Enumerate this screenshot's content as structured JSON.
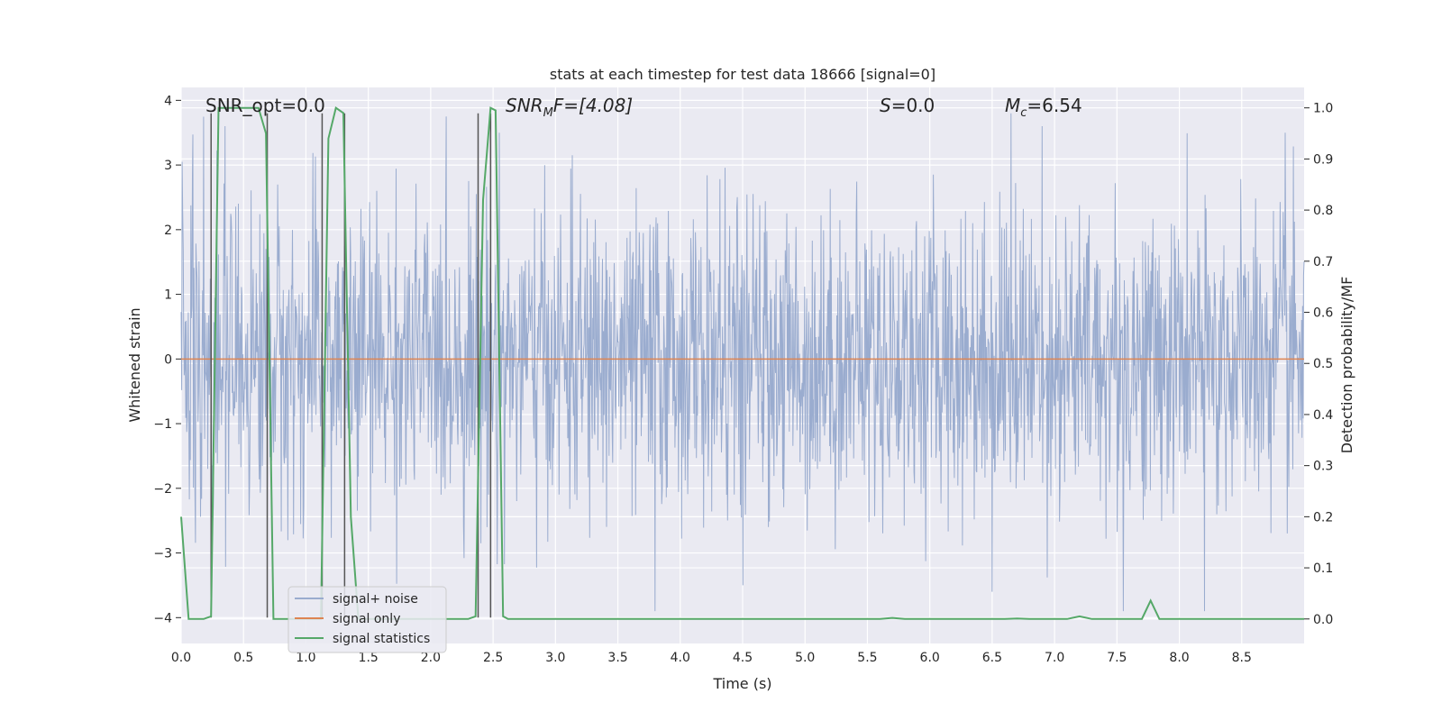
{
  "chart_data": {
    "type": "line",
    "title": "stats at each timestep for test data 18666 [signal=0]",
    "xlabel": "Time (s)",
    "ylabel_left": "Whitened strain",
    "ylabel_right": "Detection probability/MF",
    "xlim": [
      0,
      9.0
    ],
    "ylim_left": [
      -4.4,
      4.2
    ],
    "ylim_right": [
      -0.048,
      1.04
    ],
    "x_ticks": [
      0.0,
      0.5,
      1.0,
      1.5,
      2.0,
      2.5,
      3.0,
      3.5,
      4.0,
      4.5,
      5.0,
      5.5,
      6.0,
      6.5,
      7.0,
      7.5,
      8.0,
      8.5
    ],
    "x_tick_labels": [
      "0.0",
      "0.5",
      "1.0",
      "1.5",
      "2.0",
      "2.5",
      "3.0",
      "3.5",
      "4.0",
      "4.5",
      "5.0",
      "5.5",
      "6.0",
      "6.5",
      "7.0",
      "7.5",
      "8.0",
      "8.5"
    ],
    "y_left_ticks": [
      4,
      3,
      2,
      1,
      0,
      -1,
      -2,
      -3,
      -4
    ],
    "y_left_tick_labels": [
      "4",
      "3",
      "2",
      "1",
      "0",
      "−1",
      "−2",
      "−3",
      "−4"
    ],
    "y_right_ticks": [
      1.0,
      0.9,
      0.8,
      0.7,
      0.6,
      0.5,
      0.4,
      0.3,
      0.2,
      0.1,
      0.0
    ],
    "y_right_tick_labels": [
      "1.0",
      "0.9",
      "0.8",
      "0.7",
      "0.6",
      "0.5",
      "0.4",
      "0.3",
      "0.2",
      "0.1",
      "0.0"
    ],
    "annotations": {
      "snr_opt": "SNR_opt=0.0",
      "snr_mf_prefix": "SNR",
      "snr_mf_sub": "M",
      "snr_mf_suffix": "F=[4.08]",
      "s_label": "S",
      "s_value": "=0.0",
      "mc_label": "M",
      "mc_sub": "c",
      "mc_value": "=6.54"
    },
    "colors": {
      "noise": "#9aaccf",
      "signal_only": "#dd8452",
      "statistics": "#55a868",
      "vlines": "#555555",
      "background": "#eaeaf2",
      "grid": "#ffffff"
    },
    "series": [
      {
        "name": "signal+ noise",
        "axis": "left",
        "note": "dense whitened-strain noise trace, approx. range -4 to 3.8, sampled over 0-9 s",
        "seed": 18666,
        "peaks": [
          [
            0.01,
            3.05
          ],
          [
            0.35,
            3.6
          ],
          [
            2.55,
            3.5
          ],
          [
            6.65,
            3.8
          ],
          [
            6.9,
            3.6
          ],
          [
            8.85,
            3.5
          ],
          [
            3.8,
            -3.9
          ],
          [
            8.2,
            -3.9
          ],
          [
            7.55,
            -3.9
          ],
          [
            6.5,
            -3.6
          ],
          [
            4.5,
            -3.5
          ]
        ]
      },
      {
        "name": "signal only",
        "axis": "left",
        "x": [
          0,
          9.0
        ],
        "y": [
          0,
          0
        ]
      },
      {
        "name": "signal statistics",
        "axis": "right",
        "x": [
          0.0,
          0.06,
          0.18,
          0.24,
          0.3,
          0.62,
          0.68,
          0.74,
          0.78,
          1.12,
          1.18,
          1.24,
          1.3,
          1.36,
          1.42,
          2.3,
          2.36,
          2.42,
          2.48,
          2.52,
          2.58,
          2.62,
          4.0,
          5.6,
          5.7,
          5.8,
          6.6,
          6.7,
          6.8,
          7.1,
          7.2,
          7.3,
          7.7,
          7.77,
          7.84,
          9.0
        ],
        "y": [
          0.2,
          0.0,
          0.0,
          0.005,
          1.0,
          1.0,
          0.95,
          0.0,
          0.0,
          0.0,
          0.94,
          1.0,
          0.99,
          0.2,
          0.0,
          0.0,
          0.005,
          0.82,
          1.0,
          0.995,
          0.005,
          0.0,
          0.0,
          0.0,
          0.002,
          0.0,
          0.0,
          0.001,
          0.0,
          0.0,
          0.005,
          0.0,
          0.0,
          0.036,
          0.0,
          0.0
        ]
      }
    ],
    "vlines": [
      0.24,
      0.69,
      1.13,
      1.31,
      2.38,
      2.48
    ],
    "vline_y_range": [
      -4.0,
      3.8
    ],
    "legend": {
      "position": "lower-left",
      "entries": [
        "signal+ noise",
        "signal only",
        "signal statistics"
      ]
    }
  }
}
